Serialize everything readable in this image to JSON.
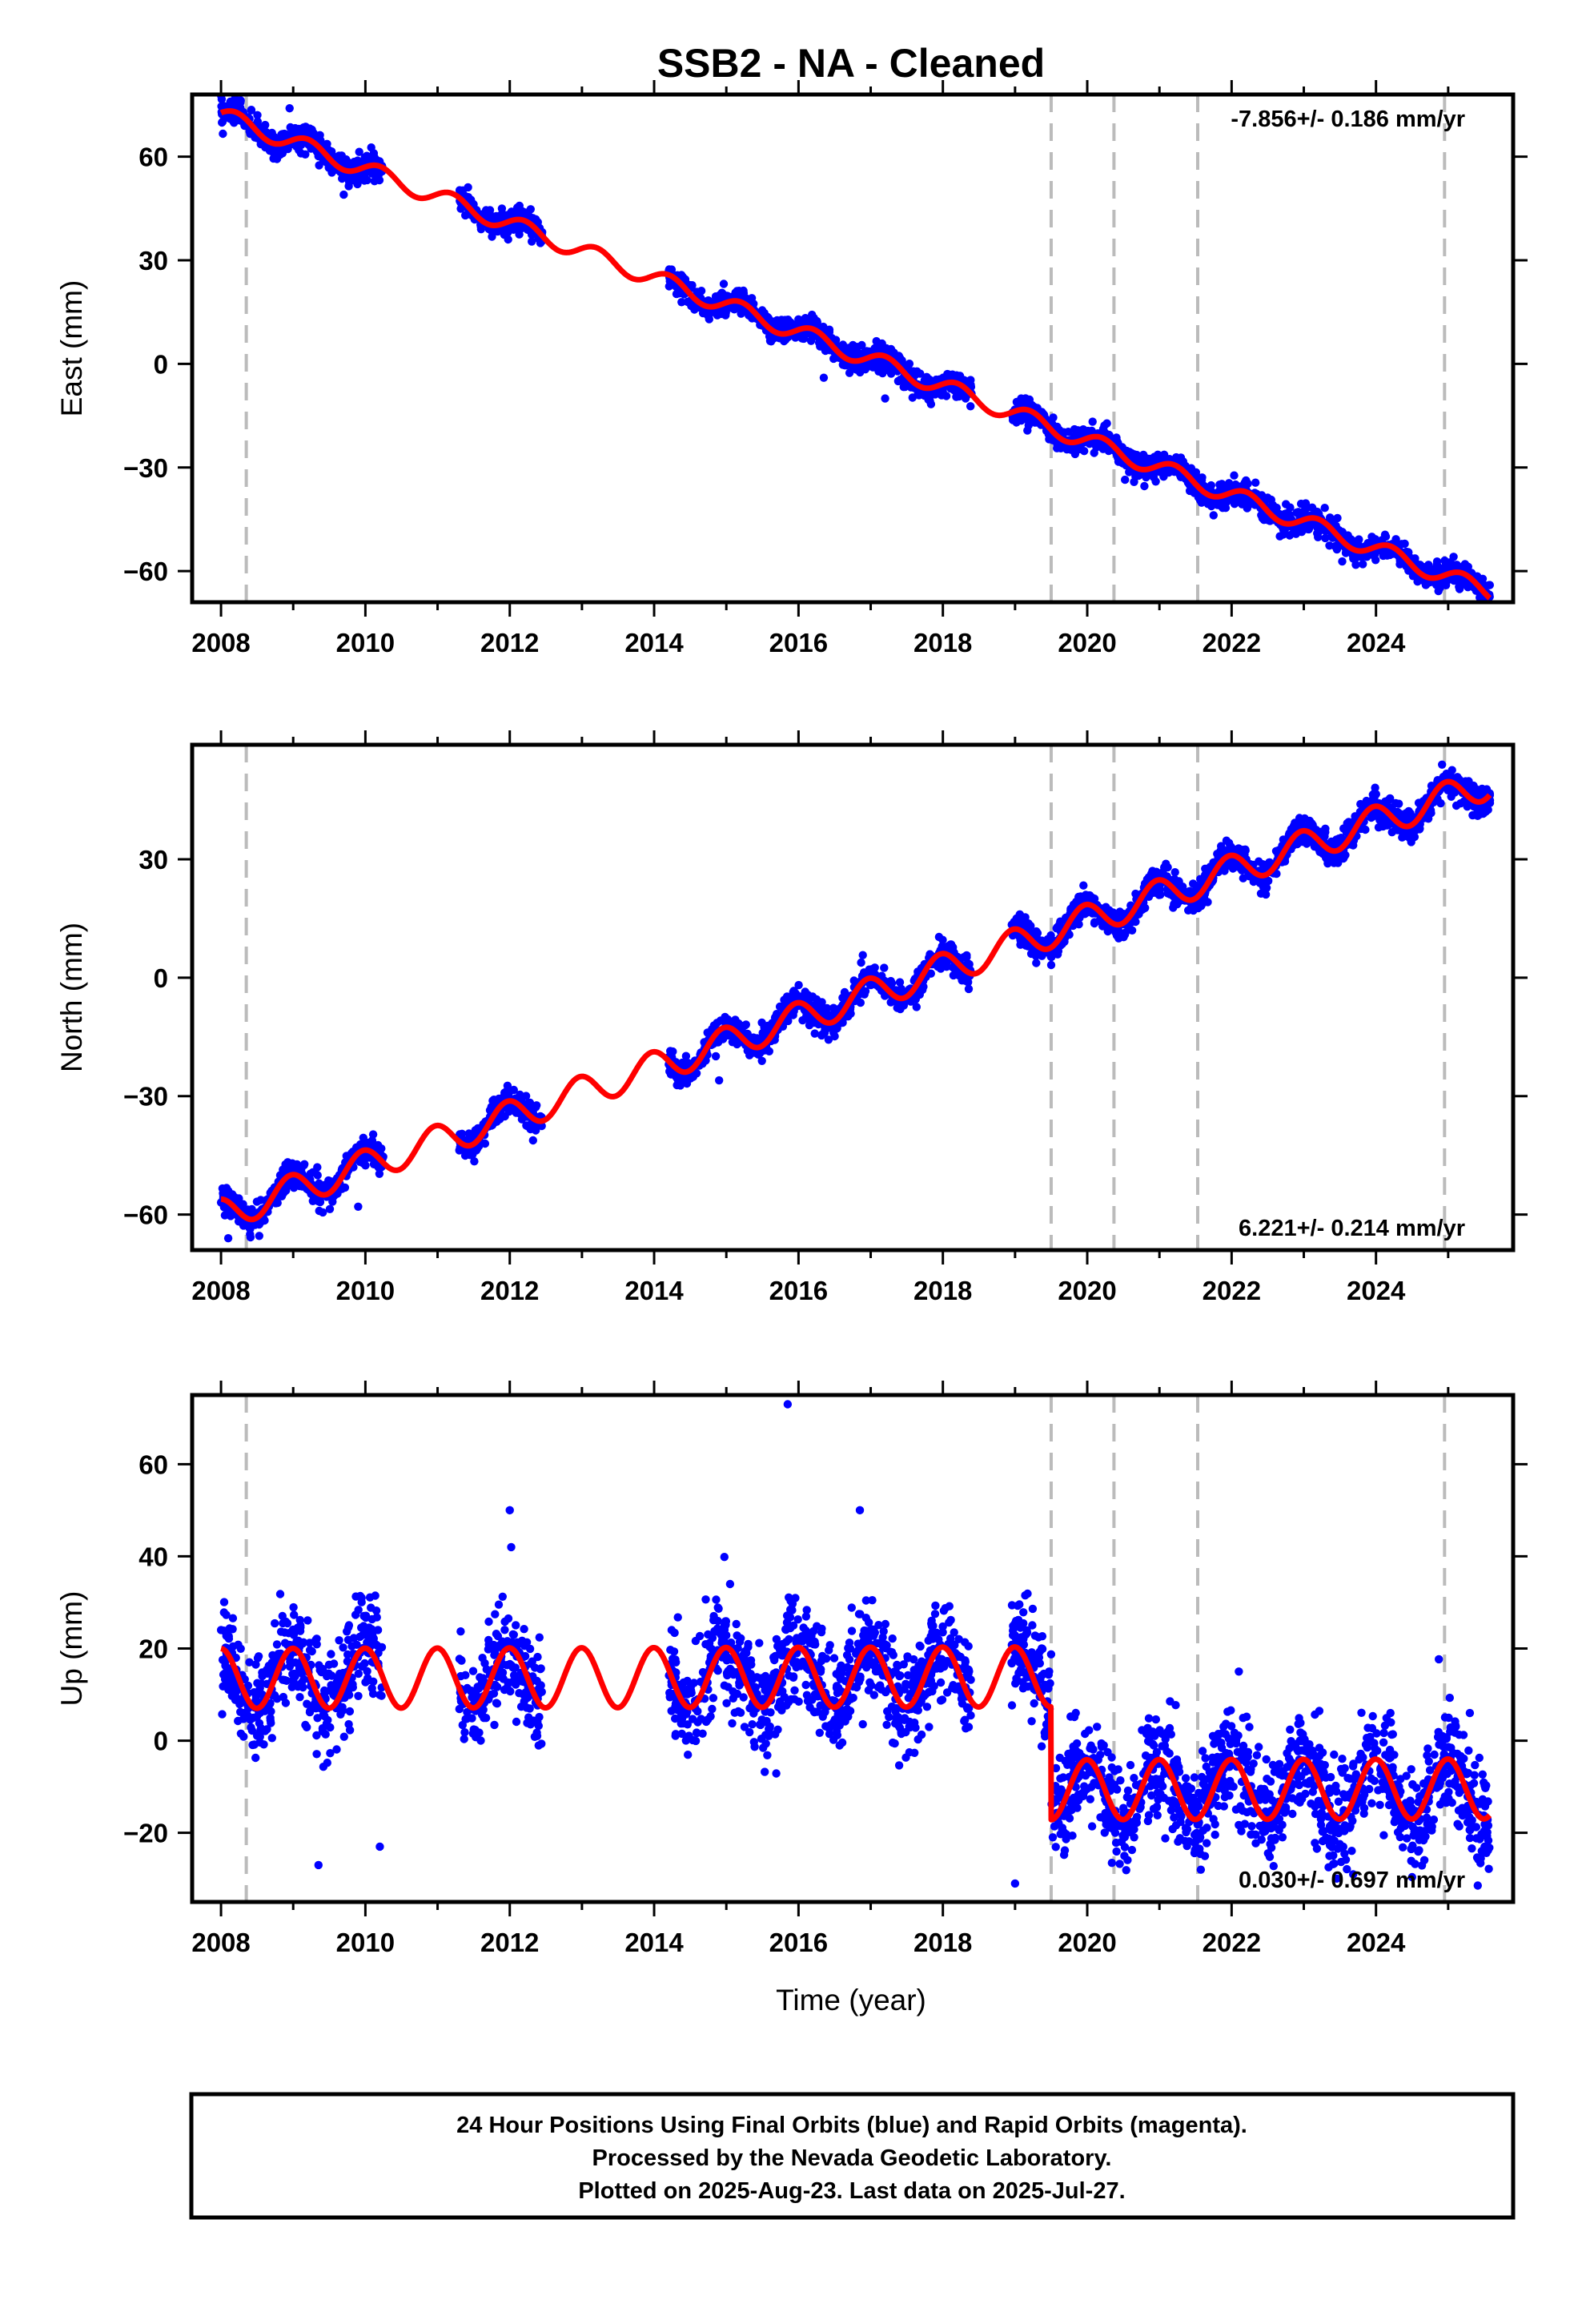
{
  "title": "SSB2  - NA - Cleaned",
  "xlabel": "Time (year)",
  "footer": {
    "line1": "24 Hour Positions Using Final Orbits (blue) and Rapid Orbits (magenta).",
    "line2": "Processed by the Nevada Geodetic Laboratory.",
    "line3": "Plotted on 2025-Aug-23. Last data on 2025-Jul-27."
  },
  "colors": {
    "data_points": "#0000ff",
    "model_fit": "#ff0000",
    "equipment_change_lines": "#bbbbbb"
  },
  "chart_data": [
    {
      "type": "scatter",
      "name": "east",
      "ylabel": "East (mm)",
      "rate_text": "-7.856+/- 0.186 mm/yr",
      "rate_placement": "top-right",
      "xlim": [
        2007.6,
        2025.9
      ],
      "ylim": [
        -69,
        78
      ],
      "x_ticks": [
        2008,
        2010,
        2012,
        2014,
        2016,
        2018,
        2020,
        2022,
        2024
      ],
      "y_ticks": [
        -60,
        -30,
        0,
        30,
        60
      ],
      "equipment_changes": [
        2008.35,
        2019.5,
        2020.37,
        2021.53,
        2024.95
      ],
      "trend": {
        "intercept_2008": 72,
        "rate": -7.856,
        "annual_amplitude": 2.5,
        "annual_phase": 0.3,
        "offset_after_2019_5": 0
      },
      "data_segments": [
        [
          2008.0,
          2010.25
        ],
        [
          2011.3,
          2012.45
        ],
        [
          2014.2,
          2018.4
        ],
        [
          2018.95,
          2025.58
        ]
      ],
      "scatter_std": 1.8,
      "outliers": [
        [
          2008.95,
          74
        ],
        [
          2016.35,
          -4
        ],
        [
          2017.2,
          -10
        ],
        [
          2019.55,
          -22
        ],
        [
          2009.7,
          49
        ]
      ]
    },
    {
      "type": "scatter",
      "name": "north",
      "ylabel": "North (mm)",
      "rate_text": "6.221+/- 0.214 mm/yr",
      "rate_placement": "bottom-right",
      "xlim": [
        2007.6,
        2025.9
      ],
      "ylim": [
        -69,
        59
      ],
      "x_ticks": [
        2008,
        2010,
        2012,
        2014,
        2016,
        2018,
        2020,
        2022,
        2024
      ],
      "y_ticks": [
        -60,
        -30,
        0,
        30
      ],
      "equipment_changes": [
        2008.35,
        2019.5,
        2020.37,
        2021.53,
        2024.95
      ],
      "trend": {
        "intercept_2008": -60,
        "rate": 6.221,
        "annual_amplitude": 4,
        "annual_phase": 1.8,
        "offset_after_2019_5": 0
      },
      "data_segments": [
        [
          2008.0,
          2010.25
        ],
        [
          2011.3,
          2012.45
        ],
        [
          2014.2,
          2018.4
        ],
        [
          2018.95,
          2025.58
        ]
      ],
      "scatter_std": 1.8,
      "outliers": [
        [
          2008.1,
          -66
        ],
        [
          2009.9,
          -58
        ],
        [
          2014.9,
          -26
        ]
      ]
    },
    {
      "type": "scatter",
      "name": "up",
      "ylabel": "Up (mm)",
      "rate_text": "0.030+/- 0.697 mm/yr",
      "rate_placement": "bottom-right",
      "xlim": [
        2007.6,
        2025.9
      ],
      "ylim": [
        -35,
        75
      ],
      "x_ticks": [
        2008,
        2010,
        2012,
        2014,
        2016,
        2018,
        2020,
        2022,
        2024
      ],
      "y_ticks": [
        -20,
        0,
        20,
        40,
        60
      ],
      "equipment_changes": [
        2008.35,
        2019.5,
        2020.37,
        2021.53,
        2024.95
      ],
      "trend": {
        "intercept_2008": 13.5,
        "rate": 0.03,
        "annual_amplitude": 6.5,
        "annual_phase": 1.6,
        "offset_after_2019_5": -24.5
      },
      "data_segments": [
        [
          2008.0,
          2010.25
        ],
        [
          2011.3,
          2012.45
        ],
        [
          2014.2,
          2018.4
        ],
        [
          2018.95,
          2025.58
        ]
      ],
      "scatter_std": 5.5,
      "outliers": [
        [
          2015.85,
          73
        ],
        [
          2012.0,
          50
        ],
        [
          2016.85,
          50
        ],
        [
          2012.02,
          42
        ],
        [
          2009.1,
          25
        ],
        [
          2019.0,
          -31
        ],
        [
          2009.35,
          -27
        ],
        [
          2010.2,
          -23
        ],
        [
          2022.1,
          15
        ],
        [
          2024.2,
          6
        ],
        [
          2025.3,
          6
        ]
      ]
    }
  ]
}
